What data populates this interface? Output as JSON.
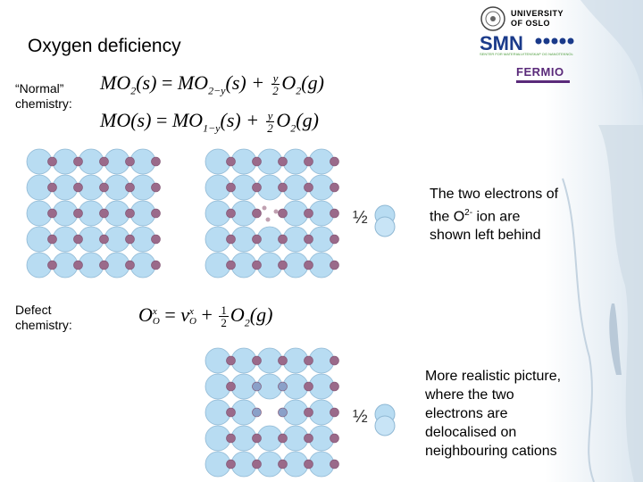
{
  "slide": {
    "title": "Oxygen deficiency",
    "normal_label": "“Normal”\nchemistry:",
    "defect_label": "Defect\nchemistry:",
    "note1_pre": "The two electrons of the O",
    "note1_sup": "2-",
    "note1_post": " ion are shown left behind",
    "note2": "More realistic picture, where the two electrons are delocalised on neighbouring cations",
    "half_symbol": "½"
  },
  "equations": {
    "eq1": {
      "lhs_M": "MO",
      "lhs_sub": "2",
      "lhs_s": "(s)",
      "eq": " = ",
      "rhs_M": "MO",
      "rhs_sub": "2−y",
      "rhs_s": "(s) + ",
      "frac_num": "y",
      "frac_den": "2",
      "o2": "O",
      "o2_sub": "2",
      "g": "(g)"
    },
    "eq2": {
      "lhs_M": "MO(s)",
      "eq": " = ",
      "rhs_M": "MO",
      "rhs_sub": "1−y",
      "rhs_s": "(s) + ",
      "frac_num": "y",
      "frac_den": "2",
      "o2": "O",
      "o2_sub": "2",
      "g": "(g)"
    },
    "eq3": {
      "lhs": "O",
      "lhs_sup": "x",
      "lhs_sub": "O",
      "eq": " = ",
      "v": "v",
      "v_sup": "x",
      "v_sub": "O",
      "plus": " + ",
      "frac_num": "1",
      "frac_den": "2",
      "o2": "O",
      "o2_sub": "2",
      "g": "(g)"
    }
  },
  "logos": {
    "university_line1": "UNIVERSITY",
    "university_line2": "OF OSLO",
    "smn": "SMN",
    "smn_sub": "SENTER FOR MATERIALVITENSKAP OG NANOTEKNOLOGI",
    "fermio": "FERMIO"
  },
  "colors": {
    "oxygen": "#b8dcf2",
    "cation": "#9a6a8a",
    "vacancy_cation": "#8aa0c8",
    "smn_blue": "#1a3a8a",
    "smn_green": "#4a9a3a",
    "fermio": "#5a2a7a"
  }
}
